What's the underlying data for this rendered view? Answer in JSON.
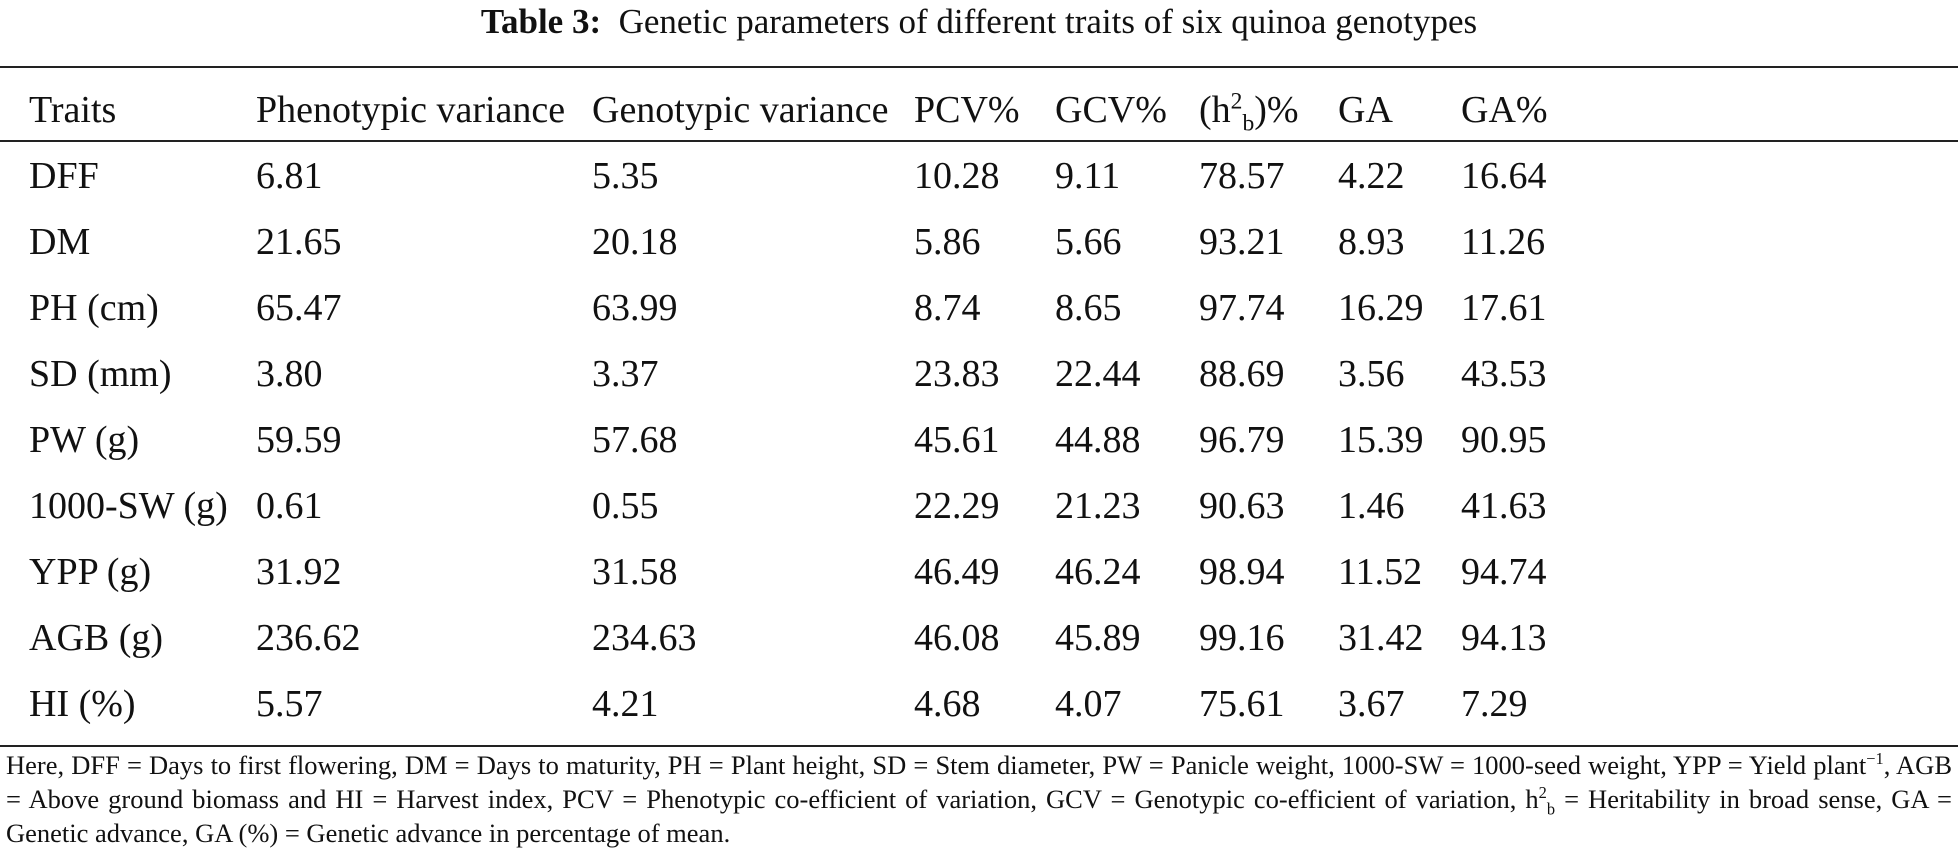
{
  "caption": {
    "label": "Table 3:",
    "text": "Genetic parameters of different traits of six quinoa genotypes"
  },
  "table": {
    "headers": {
      "traits": "Traits",
      "phenotypic_variance": "Phenotypic variance",
      "genotypic_variance": "Genotypic variance",
      "pcv": "PCV%",
      "gcv": "GCV%",
      "heritability_open": "(h",
      "heritability_sup": "2",
      "heritability_sub": "b",
      "heritability_close": ")%",
      "ga": "GA",
      "ga_percent": "GA%"
    },
    "rows": [
      [
        "DFF",
        "6.81",
        "5.35",
        "10.28",
        "9.11",
        "78.57",
        "4.22",
        "16.64"
      ],
      [
        "DM",
        "21.65",
        "20.18",
        "5.86",
        "5.66",
        "93.21",
        "8.93",
        "11.26"
      ],
      [
        "PH (cm)",
        "65.47",
        "63.99",
        "8.74",
        "8.65",
        "97.74",
        "16.29",
        "17.61"
      ],
      [
        "SD (mm)",
        "3.80",
        "3.37",
        "23.83",
        "22.44",
        "88.69",
        "3.56",
        "43.53"
      ],
      [
        "PW (g)",
        "59.59",
        "57.68",
        "45.61",
        "44.88",
        "96.79",
        "15.39",
        "90.95"
      ],
      [
        "1000-SW (g)",
        "0.61",
        "0.55",
        "22.29",
        "21.23",
        "90.63",
        "1.46",
        "41.63"
      ],
      [
        "YPP (g)",
        "31.92",
        "31.58",
        "46.49",
        "46.24",
        "98.94",
        "11.52",
        "94.74"
      ],
      [
        "AGB (g)",
        "236.62",
        "234.63",
        "46.08",
        "45.89",
        "99.16",
        "31.42",
        "94.13"
      ],
      [
        "HI (%)",
        "5.57",
        "4.21",
        "4.68",
        "4.07",
        "75.61",
        "3.67",
        "7.29"
      ]
    ]
  },
  "footnote": {
    "part1": "Here, DFF = Days to first flowering, DM = Days to maturity, PH = Plant height, SD = Stem diameter, PW = Panicle weight, 1000-SW = 1000-seed weight, YPP = Yield plant",
    "sup1": "−1",
    "part2": ", AGB = Above ground biomass and HI = Harvest index, PCV = Phenotypic co-efficient of variation, GCV = Genotypic co-efficient of variation, h",
    "sup2": "2",
    "sub2": "b",
    "part3": " = Heritability in broad sense, GA = Genetic advance, GA (%) = Genetic advance in percentage of mean."
  }
}
